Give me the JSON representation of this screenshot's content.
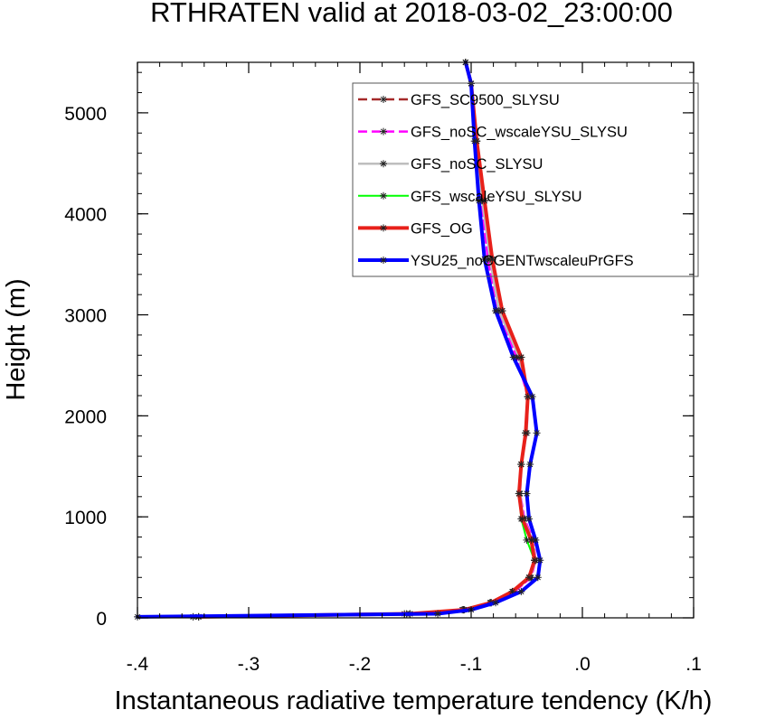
{
  "chart_data": {
    "type": "line",
    "title": "RTHRATEN valid at 2018-03-02_23:00:00",
    "xlabel": "Instantaneous radiative temperature tendency (K/h)",
    "ylabel": "Height (m)",
    "xlim": [
      -0.4,
      0.1
    ],
    "ylim": [
      0,
      5500
    ],
    "xticks": [
      -0.4,
      -0.3,
      -0.2,
      -0.1,
      0.0,
      0.1
    ],
    "xtick_labels": [
      "-.4",
      "-.3",
      "-.2",
      "-.1",
      ".0",
      ".1"
    ],
    "yticks": [
      0,
      1000,
      2000,
      3000,
      4000,
      5000
    ],
    "ytick_labels": [
      "0",
      "1000",
      "2000",
      "3000",
      "4000",
      "5000"
    ],
    "grid": false,
    "legend_position": "top-right",
    "y": [
      10,
      40,
      80,
      150,
      260,
      400,
      570,
      770,
      980,
      1230,
      1520,
      1830,
      2190,
      2580,
      3040,
      3550,
      4130,
      4720,
      5290,
      5500
    ],
    "series": [
      {
        "name": "GFS_SC9500_SLYSU",
        "color": "#a52a2a",
        "line_style": "dashed",
        "line_width": 2.5,
        "values": [
          -0.345,
          -0.155,
          -0.107,
          -0.083,
          -0.063,
          -0.048,
          -0.043,
          -0.046,
          -0.054,
          -0.057,
          -0.055,
          -0.051,
          -0.049,
          -0.055,
          -0.072,
          -0.081,
          -0.088,
          -0.095,
          -0.1,
          -0.105
        ]
      },
      {
        "name": "GFS_noSC_wscaleYSU_SLYSU",
        "color": "#ff00ff",
        "line_style": "dashed",
        "line_width": 2.5,
        "values": [
          -0.35,
          -0.16,
          -0.108,
          -0.082,
          -0.061,
          -0.046,
          -0.042,
          -0.044,
          -0.052,
          -0.056,
          -0.055,
          -0.05,
          -0.049,
          -0.059,
          -0.077,
          -0.085,
          -0.091,
          -0.096,
          -0.1,
          -0.105
        ]
      },
      {
        "name": "GFS_noSC_SLYSU",
        "color": "#bebebe",
        "line_style": "solid",
        "line_width": 2.5,
        "values": [
          -0.35,
          -0.158,
          -0.107,
          -0.082,
          -0.062,
          -0.047,
          -0.042,
          -0.045,
          -0.053,
          -0.056,
          -0.055,
          -0.05,
          -0.049,
          -0.057,
          -0.075,
          -0.083,
          -0.09,
          -0.096,
          -0.1,
          -0.105
        ]
      },
      {
        "name": "GFS_wscaleYSU_SLYSU",
        "color": "#00ff00",
        "line_style": "solid",
        "line_width": 2,
        "values": [
          -0.345,
          -0.155,
          -0.107,
          -0.083,
          -0.062,
          -0.048,
          -0.043,
          -0.05,
          -0.055,
          -0.057,
          -0.055,
          -0.051,
          -0.049,
          -0.055,
          -0.072,
          -0.081,
          -0.088,
          -0.095,
          -0.1,
          -0.105
        ]
      },
      {
        "name": "GFS_OG",
        "color": "#e8201a",
        "line_style": "solid",
        "line_width": 4,
        "values": [
          -0.345,
          -0.155,
          -0.106,
          -0.082,
          -0.063,
          -0.048,
          -0.043,
          -0.046,
          -0.054,
          -0.057,
          -0.055,
          -0.051,
          -0.049,
          -0.055,
          -0.072,
          -0.081,
          -0.088,
          -0.095,
          -0.1,
          -0.105
        ]
      },
      {
        "name": "YSU25_noCGENTwscaleuPrGFS",
        "color": "#0000ff",
        "line_style": "solid",
        "line_width": 4,
        "values": [
          -0.4,
          -0.13,
          -0.1,
          -0.078,
          -0.055,
          -0.04,
          -0.038,
          -0.042,
          -0.048,
          -0.05,
          -0.047,
          -0.041,
          -0.045,
          -0.062,
          -0.078,
          -0.088,
          -0.093,
          -0.097,
          -0.1,
          -0.105
        ]
      }
    ]
  }
}
